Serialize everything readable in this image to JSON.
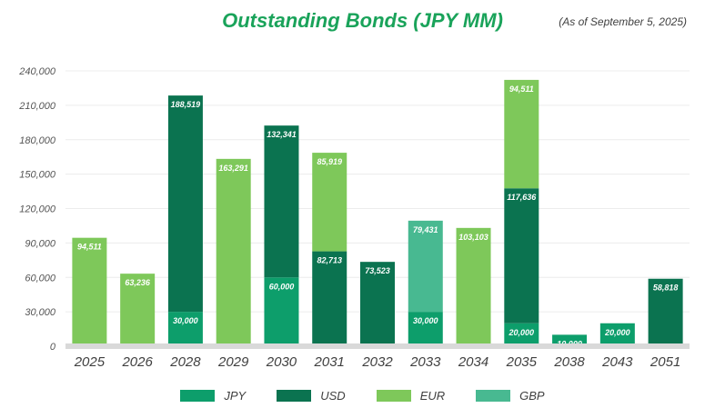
{
  "title": "Outstanding Bonds (JPY MM)",
  "subtitle": "(As of September 5, 2025)",
  "colors": {
    "JPY": "#0d9e6b",
    "USD": "#0b7350",
    "EUR": "#7ec85a",
    "GBP": "#48b991",
    "axis": "#d9d9d9",
    "grid": "#ececec"
  },
  "chart_data": {
    "type": "bar",
    "stacked": true,
    "title": "Outstanding Bonds (JPY MM)",
    "subtitle": "(As of September 5, 2025)",
    "categories": [
      "2025",
      "2026",
      "2028",
      "2029",
      "2030",
      "2031",
      "2032",
      "2033",
      "2034",
      "2035",
      "2038",
      "2043",
      "2051"
    ],
    "ylim": [
      0,
      240000
    ],
    "yticks": [
      0,
      30000,
      60000,
      90000,
      120000,
      150000,
      180000,
      210000,
      240000
    ],
    "ytick_labels": [
      "0",
      "30,000",
      "60,000",
      "90,000",
      "120,000",
      "150,000",
      "180,000",
      "210,000",
      "240,000"
    ],
    "grid": true,
    "legend_position": "bottom",
    "series": [
      {
        "name": "JPY",
        "values": [
          0,
          0,
          30000,
          0,
          60000,
          0,
          0,
          30000,
          0,
          20000,
          10000,
          20000,
          0
        ],
        "labels": [
          "",
          "",
          "30,000",
          "",
          "60,000",
          "",
          "",
          "30,000",
          "",
          "20,000",
          "10,000",
          "20,000",
          ""
        ]
      },
      {
        "name": "USD",
        "values": [
          0,
          0,
          188519,
          0,
          132341,
          82713,
          73523,
          0,
          0,
          117636,
          0,
          0,
          58818
        ],
        "labels": [
          "",
          "",
          "188,519",
          "",
          "132,341",
          "82,713",
          "73,523",
          "",
          "",
          "117,636",
          "",
          "",
          "58,818"
        ]
      },
      {
        "name": "EUR",
        "values": [
          94511,
          63236,
          0,
          163291,
          0,
          85919,
          0,
          0,
          103103,
          94511,
          0,
          0,
          0
        ],
        "labels": [
          "94,511",
          "63,236",
          "",
          "163,291",
          "",
          "85,919",
          "",
          "",
          "103,103",
          "94,511",
          "",
          "",
          ""
        ]
      },
      {
        "name": "GBP",
        "values": [
          0,
          0,
          0,
          0,
          0,
          0,
          0,
          79431,
          0,
          0,
          0,
          0,
          0
        ],
        "labels": [
          "",
          "",
          "",
          "",
          "",
          "",
          "",
          "79,431",
          "",
          "",
          "",
          "",
          ""
        ]
      }
    ]
  }
}
